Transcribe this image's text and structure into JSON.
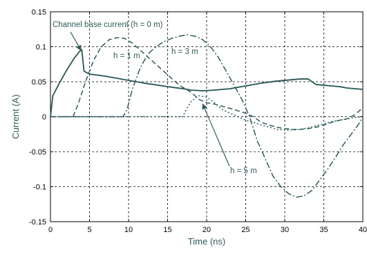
{
  "chart_data": {
    "type": "line",
    "title": "",
    "xlabel": "Time (ns)",
    "ylabel": "Current (A)",
    "xlim": [
      0,
      40
    ],
    "ylim": [
      -0.15,
      0.15
    ],
    "x_ticks": [
      0,
      5,
      10,
      15,
      20,
      25,
      30,
      35,
      40
    ],
    "x_tick_labels": [
      "0",
      "5",
      "10",
      "15",
      "20",
      "25",
      "30",
      "35",
      "40"
    ],
    "y_ticks": [
      0.15,
      0.1,
      0.05,
      0,
      -0.05,
      -0.1,
      -0.15
    ],
    "y_tick_labels": [
      "0.15",
      "0.1",
      "0.05",
      "0",
      "-0.05",
      "-0.1",
      "-0.15"
    ],
    "grid": true,
    "grid_style": "dashed",
    "line_color": "#2e5c5a",
    "zero_segment_color": "#3a4fb0",
    "series": [
      {
        "name": "Channel base current (h = 0 m)",
        "style": "solid",
        "x": [
          0,
          0.3,
          1,
          2,
          3,
          3.7,
          4,
          4.3,
          5,
          7,
          10,
          12,
          15,
          17,
          18,
          19.5,
          21,
          23,
          25,
          27,
          29,
          31,
          32,
          33,
          34,
          35,
          36,
          37,
          38,
          39,
          40
        ],
        "y": [
          0,
          0.03,
          0.045,
          0.065,
          0.083,
          0.093,
          0.096,
          0.065,
          0.061,
          0.058,
          0.052,
          0.048,
          0.043,
          0.04,
          0.038,
          0.037,
          0.038,
          0.04,
          0.044,
          0.048,
          0.051,
          0.053,
          0.054,
          0.054,
          0.046,
          0.045,
          0.044,
          0.043,
          0.041,
          0.04,
          0.039
        ]
      },
      {
        "name": "h = 1 m",
        "style": "dashed",
        "x": [
          0,
          2.9,
          3.6,
          4.5,
          5.5,
          6.5,
          7.5,
          8.5,
          9.5,
          10.5,
          12,
          13.5,
          15,
          16.5,
          18,
          19,
          20,
          21,
          23,
          25,
          26,
          27,
          28,
          29,
          30,
          31,
          32,
          33,
          34,
          35,
          36,
          37,
          38,
          39,
          40
        ],
        "y": [
          0,
          0,
          0.02,
          0.05,
          0.08,
          0.1,
          0.11,
          0.113,
          0.112,
          0.105,
          0.09,
          0.075,
          0.06,
          0.045,
          0.035,
          0.025,
          0.02,
          0.018,
          0.012,
          0.005,
          0,
          -0.008,
          -0.012,
          -0.015,
          -0.017,
          -0.018,
          -0.018,
          -0.017,
          -0.015,
          -0.012,
          -0.008,
          -0.005,
          -0.003,
          0.003,
          0.013
        ]
      },
      {
        "name": "h = 3 m",
        "style": "dashdot",
        "x": [
          0,
          9.3,
          9.8,
          10.5,
          11.5,
          12.5,
          13.5,
          14.5,
          15.5,
          16.5,
          17.5,
          18.5,
          19.5,
          20.5,
          21.5,
          22.5,
          23.5,
          24.5,
          25.5,
          26.5,
          27.5,
          28.5,
          29.5,
          30.5,
          31.5,
          32.5,
          33.5,
          34.5,
          35.5,
          36.5,
          37.5,
          38.5,
          39.5,
          40
        ],
        "y": [
          0,
          0,
          0.01,
          0.04,
          0.07,
          0.09,
          0.1,
          0.107,
          0.112,
          0.115,
          0.117,
          0.115,
          0.11,
          0.1,
          0.085,
          0.065,
          0.045,
          0.025,
          0.0,
          -0.035,
          -0.06,
          -0.085,
          -0.1,
          -0.11,
          -0.115,
          -0.113,
          -0.105,
          -0.09,
          -0.075,
          -0.058,
          -0.04,
          -0.025,
          -0.01,
          0
        ]
      },
      {
        "name": "h = 5 m",
        "style": "dotted",
        "x": [
          0,
          16.9,
          17.3,
          18,
          19,
          20,
          21,
          22,
          23,
          24,
          25,
          26,
          27,
          28,
          29,
          30,
          31,
          32,
          33,
          34,
          35,
          36,
          37,
          38,
          39,
          40
        ],
        "y": [
          0,
          0,
          0.008,
          0.022,
          0.03,
          0.028,
          0.02,
          0.01,
          0.005,
          0.0,
          -0.005,
          -0.008,
          -0.012,
          -0.015,
          -0.018,
          -0.019,
          -0.019,
          -0.018,
          -0.016,
          -0.013,
          -0.01,
          -0.007,
          -0.005,
          -0.003,
          -0.001,
          0
        ]
      }
    ],
    "annotations": [
      {
        "text": "Channel base current (h = 0 m)",
        "at": [
          3.9,
          0.095
        ]
      },
      {
        "text": "h = 1 m",
        "at": [
          10.2,
          0.101
        ]
      },
      {
        "text": "h = 3 m",
        "at": [
          15.9,
          0.104
        ]
      },
      {
        "text": "h = 5 m",
        "at": [
          19.5,
          0.018
        ]
      }
    ]
  }
}
